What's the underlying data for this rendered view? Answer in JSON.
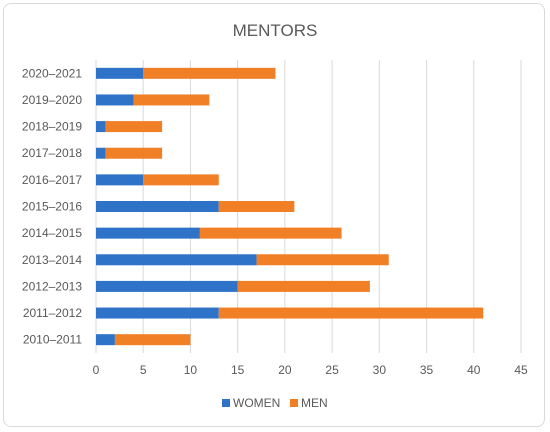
{
  "chart_data": {
    "type": "bar",
    "orientation": "horizontal",
    "stacked": true,
    "title": "MENTORS",
    "categories": [
      "2020–2021",
      "2019–2020",
      "2018–2019",
      "2017–2018",
      "2016–2017",
      "2015–2016",
      "2014–2015",
      "2013–2014",
      "2012–2013",
      "2011–2012",
      "2010–2011"
    ],
    "series": [
      {
        "name": "WOMEN",
        "color": "#2f73c9",
        "values": [
          5,
          4,
          1,
          1,
          5,
          13,
          11,
          17,
          15,
          13,
          2
        ]
      },
      {
        "name": "MEN",
        "color": "#f07f26",
        "values": [
          14,
          8,
          6,
          6,
          8,
          8,
          15,
          14,
          14,
          28,
          8
        ]
      }
    ],
    "xlim": [
      0,
      45
    ],
    "xticks": [
      0,
      5,
      10,
      15,
      20,
      25,
      30,
      35,
      40,
      45
    ],
    "grid": true,
    "legend_position": "bottom"
  }
}
